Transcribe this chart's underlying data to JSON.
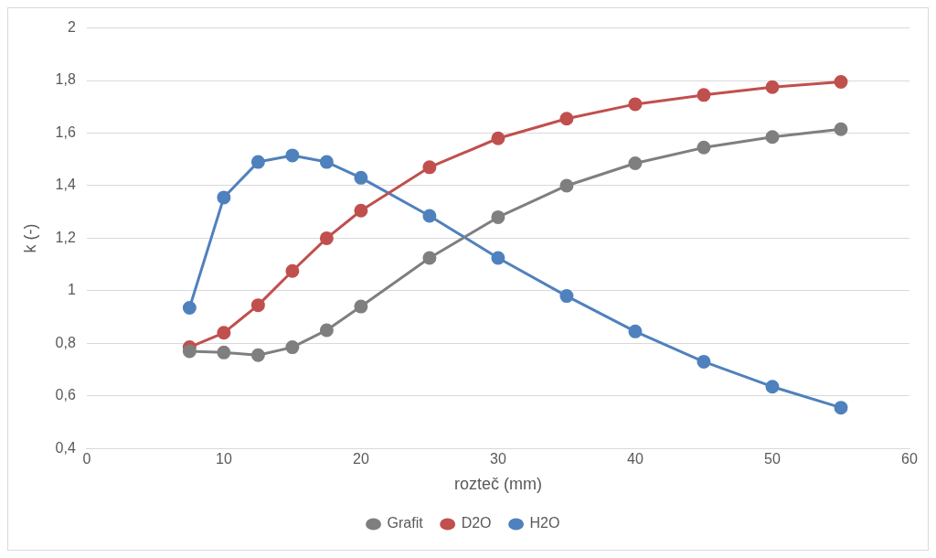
{
  "chart_data": {
    "type": "line",
    "xlabel": "rozteč (mm)",
    "ylabel": "k (-)",
    "x": [
      7.5,
      10,
      12.5,
      15,
      17.5,
      20,
      25,
      30,
      35,
      40,
      45,
      50,
      55
    ],
    "series": [
      {
        "name": "Grafit",
        "color": "#7f7f7f",
        "values": [
          0.77,
          0.765,
          0.755,
          0.785,
          0.85,
          0.94,
          1.125,
          1.28,
          1.4,
          1.485,
          1.545,
          1.585,
          1.615
        ]
      },
      {
        "name": "D2O",
        "color": "#c0504d",
        "values": [
          0.785,
          0.84,
          0.945,
          1.075,
          1.2,
          1.305,
          1.47,
          1.58,
          1.655,
          1.71,
          1.745,
          1.775,
          1.795
        ]
      },
      {
        "name": "H2O",
        "color": "#4f81bd",
        "values": [
          0.935,
          1.355,
          1.49,
          1.515,
          1.49,
          1.43,
          1.285,
          1.125,
          0.98,
          0.845,
          0.73,
          0.635,
          0.555
        ]
      }
    ],
    "xlim": [
      0,
      60
    ],
    "xticks": [
      0,
      10,
      20,
      30,
      40,
      50,
      60
    ],
    "ylim": [
      0.4,
      2
    ],
    "yticks": [
      {
        "value": 0.4,
        "label": "0,4"
      },
      {
        "value": 0.6,
        "label": "0,6"
      },
      {
        "value": 0.8,
        "label": "0,8"
      },
      {
        "value": 1,
        "label": "1"
      },
      {
        "value": 1.2,
        "label": "1,2"
      },
      {
        "value": 1.4,
        "label": "1,4"
      },
      {
        "value": 1.6,
        "label": "1,6"
      },
      {
        "value": 1.8,
        "label": "1,8"
      },
      {
        "value": 2,
        "label": "2"
      }
    ],
    "grid": "y",
    "legend": "bottom",
    "marker": "circle",
    "line_style": "solid"
  }
}
